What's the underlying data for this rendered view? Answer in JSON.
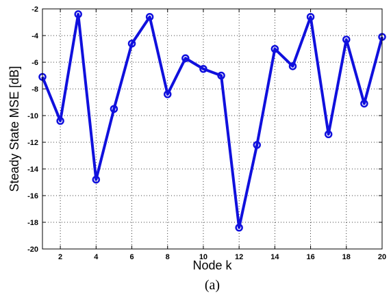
{
  "chart_data": {
    "type": "line",
    "xlabel": "Node k",
    "ylabel": "Steady State MSE [dB]",
    "caption": "(a)",
    "xlim": [
      1,
      20
    ],
    "ylim": [
      -20,
      -2
    ],
    "xticks": [
      2,
      4,
      6,
      8,
      10,
      12,
      14,
      16,
      18,
      20
    ],
    "yticks": [
      -2,
      -4,
      -6,
      -8,
      -10,
      -12,
      -14,
      -16,
      -18,
      -20
    ],
    "grid": true,
    "series": [
      {
        "color": "#1010dd",
        "marker": "circle",
        "x": [
          1,
          2,
          3,
          4,
          5,
          6,
          7,
          8,
          9,
          10,
          11,
          12,
          13,
          14,
          15,
          16,
          17,
          18,
          19,
          20
        ],
        "y": [
          -7.1,
          -10.4,
          -2.4,
          -14.8,
          -9.5,
          -4.6,
          -2.6,
          -8.4,
          -5.7,
          -6.5,
          -7.0,
          -18.4,
          -12.2,
          -5.0,
          -6.3,
          -2.6,
          -11.4,
          -4.3,
          -9.1,
          -4.1
        ]
      }
    ]
  }
}
